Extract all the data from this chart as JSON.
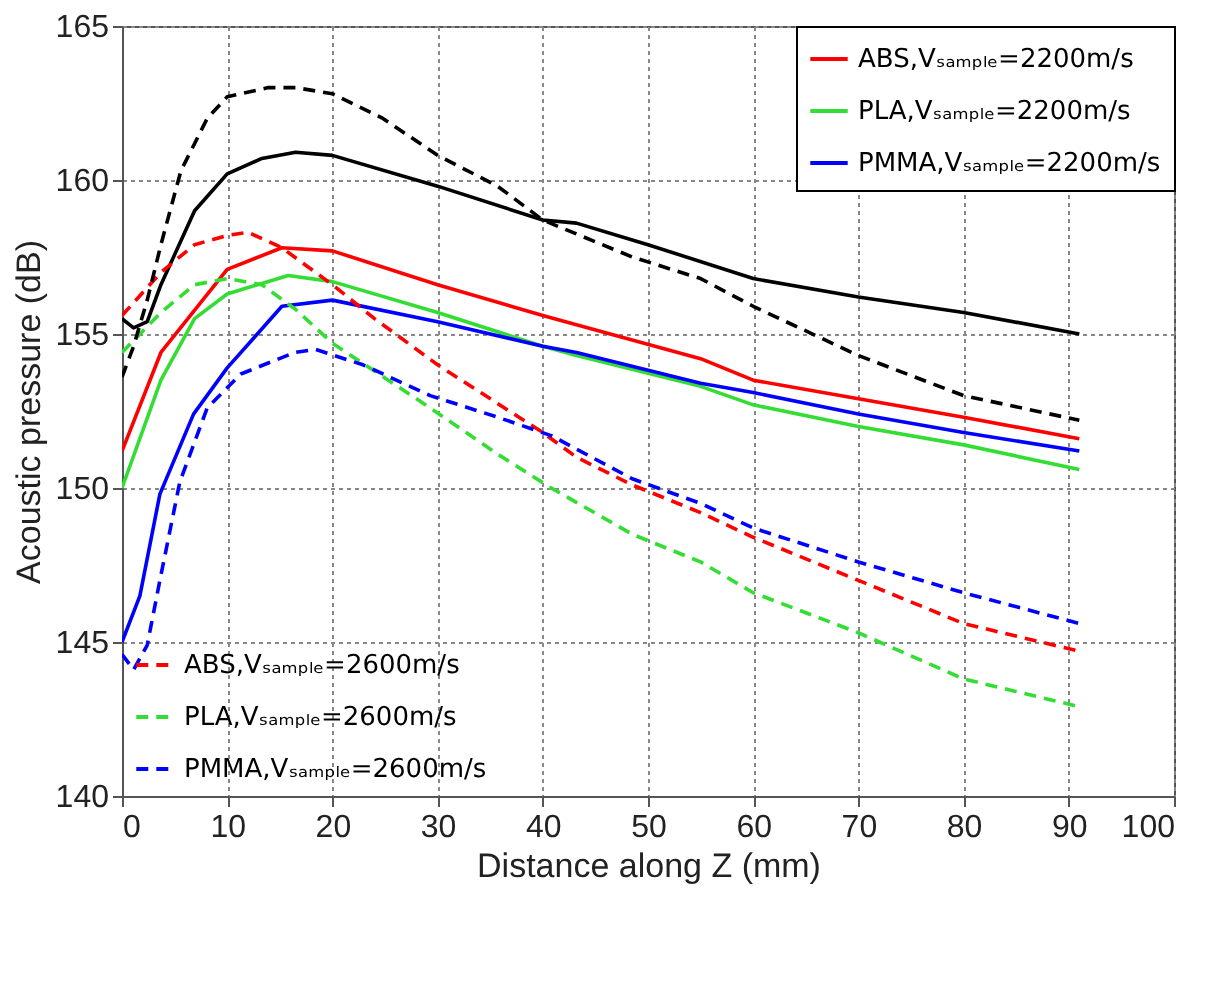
{
  "chart_data": {
    "type": "line",
    "xlabel": "Distance along Z (mm)",
    "ylabel": "Acoustic pressure (dB)",
    "xlim": [
      0,
      100
    ],
    "xticks": [
      0,
      10,
      20,
      30,
      40,
      50,
      60,
      70,
      80,
      90,
      100
    ],
    "ylim": [
      140,
      165
    ],
    "yticks": [
      140,
      145,
      150,
      155,
      160,
      165
    ],
    "grid": true,
    "legend": "bottom left",
    "marker": "none",
    "series": [
      {
        "name": "ABS,Vₛₐₘₚₗₑ=2200m/s",
        "color": "#ff0000",
        "line_style": "solid",
        "x": [
          0,
          3.7,
          10,
          15.2,
          20,
          30,
          40,
          43.2,
          55,
          60,
          70,
          80,
          91
        ],
        "values": [
          151.2,
          154.4,
          157.1,
          157.8,
          157.7,
          156.6,
          155.6,
          155.3,
          154.2,
          153.5,
          152.9,
          152.3,
          151.6
        ]
      },
      {
        "name": "PLA,Vₛₐₘₚₗₑ=2200m/s",
        "color": "#33dd33",
        "line_style": "solid",
        "x": [
          0,
          3.7,
          6.9,
          10,
          15.8,
          20,
          30,
          40,
          43.2,
          55,
          60,
          70,
          80,
          91
        ],
        "values": [
          150.0,
          153.5,
          155.5,
          156.3,
          156.9,
          156.7,
          155.7,
          154.6,
          154.3,
          153.3,
          152.7,
          152.0,
          151.4,
          150.6
        ]
      },
      {
        "name": "PMMA,Vₛₐₘₚₗₑ=2200m/s",
        "color": "#0000ff",
        "line_style": "solid",
        "x": [
          0,
          1.7,
          3.6,
          6.8,
          10,
          15.2,
          20,
          30,
          40,
          43.2,
          55,
          60,
          70,
          80,
          91
        ],
        "values": [
          145.0,
          146.5,
          149.8,
          152.4,
          153.9,
          155.9,
          156.1,
          155.4,
          154.6,
          154.4,
          153.4,
          153.1,
          152.4,
          151.8,
          151.2
        ]
      },
      {
        "color": "#000000",
        "line_style": "solid",
        "x": [
          0,
          1.1,
          2.4,
          3.7,
          6.9,
          10,
          13.3,
          16.5,
          20,
          30,
          40,
          43.2,
          50,
          60,
          70,
          80,
          91
        ],
        "values": [
          155.5,
          155.2,
          155.4,
          156.6,
          159.0,
          160.2,
          160.7,
          160.9,
          160.8,
          159.8,
          158.7,
          158.6,
          157.9,
          156.8,
          156.2,
          155.7,
          155.0
        ]
      },
      {
        "name": "ABS,Vₛₐₘₚₗₑ=2600m/s",
        "color": "#ff0000",
        "line_style": "dashed",
        "x": [
          0,
          3.7,
          6.9,
          10,
          12,
          15.2,
          20,
          24,
          30,
          40,
          43.2,
          48.5,
          55,
          60,
          70,
          80,
          91
        ],
        "values": [
          155.6,
          157.0,
          157.9,
          158.2,
          158.3,
          157.8,
          156.6,
          155.5,
          154.0,
          151.8,
          151.0,
          150.1,
          149.2,
          148.4,
          147.0,
          145.6,
          144.7
        ]
      },
      {
        "name": "PLA,Vₛₐₘₚₗₑ=2600m/s",
        "color": "#33dd33",
        "line_style": "dashed",
        "x": [
          0,
          3.7,
          6.9,
          10,
          13.3,
          16.5,
          20,
          29.3,
          35.7,
          40.8,
          48.5,
          55,
          60,
          70,
          80,
          91
        ],
        "values": [
          154.4,
          155.7,
          156.6,
          156.8,
          156.6,
          155.8,
          154.7,
          152.6,
          151.1,
          150.0,
          148.5,
          147.6,
          146.6,
          145.3,
          143.8,
          142.9
        ]
      },
      {
        "name": "PMMA,Vₛₐₘₚₗₑ=2600m/s",
        "color": "#0000ff",
        "line_style": "dashed",
        "x": [
          0,
          1.1,
          2.4,
          3.6,
          5.5,
          8.1,
          11.3,
          16.4,
          18.4,
          22.9,
          29.3,
          35.7,
          40.8,
          48.5,
          55,
          60,
          70,
          80,
          91
        ],
        "values": [
          144.6,
          144.1,
          144.9,
          147.0,
          150.2,
          152.6,
          153.7,
          154.4,
          154.5,
          154.0,
          153.0,
          152.3,
          151.7,
          150.3,
          149.5,
          148.7,
          147.6,
          146.6,
          145.6
        ]
      },
      {
        "color": "#000000",
        "line_style": "dashed",
        "x": [
          0,
          1.1,
          2.4,
          3.7,
          5.6,
          8.1,
          10,
          13.9,
          16.5,
          20,
          24.8,
          30,
          35.7,
          40,
          48.5,
          55,
          60,
          70,
          80,
          91
        ],
        "values": [
          153.6,
          154.6,
          156.1,
          157.9,
          160.3,
          162.0,
          162.7,
          163.0,
          163.0,
          162.8,
          162.0,
          160.8,
          159.8,
          158.7,
          157.5,
          156.8,
          155.9,
          154.3,
          153.0,
          152.2
        ]
      }
    ]
  }
}
